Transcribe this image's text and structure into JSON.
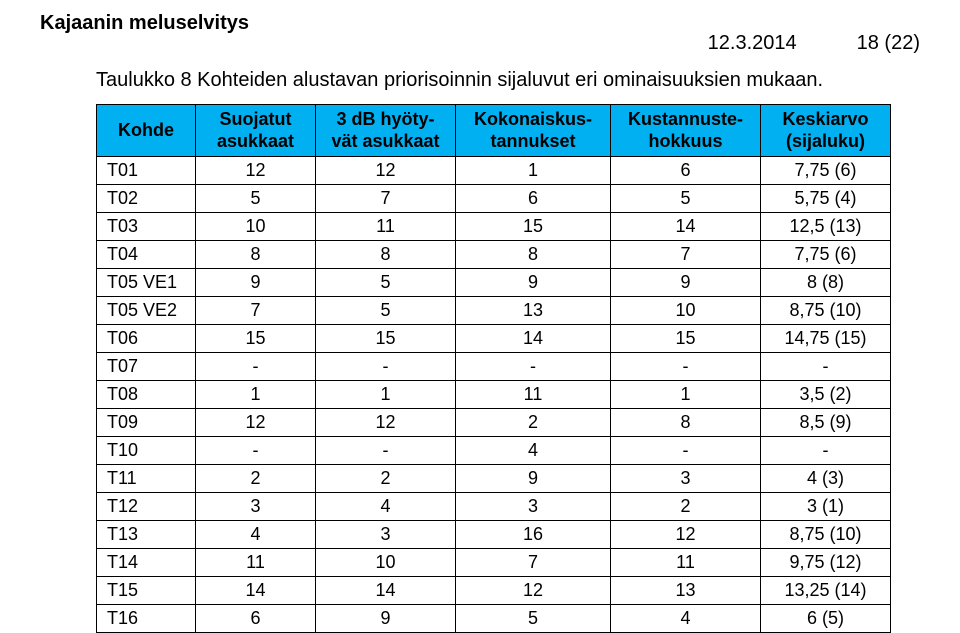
{
  "doc_title": "Kajaanin meluselvitys",
  "date": "12.3.2014",
  "page_indicator": "18 (22)",
  "caption": "Taulukko 8 Kohteiden alustavan priorisoinnin sijaluvut eri ominaisuuksien mukaan.",
  "table": {
    "header_bg": "#00b0f0",
    "border_color": "#000000",
    "columns": [
      "Kohde",
      "Suojatut asukkaat",
      "3 dB hyöty-vät asukkaat",
      "Kokonaiskus-tannukset",
      "Kustannuste-hokkuus",
      "Keskiarvo (sijaluku)"
    ],
    "header_lines": [
      [
        "Kohde"
      ],
      [
        "Suojatut",
        "asukkaat"
      ],
      [
        "3 dB hyöty-",
        "vät asukkaat"
      ],
      [
        "Kokonaiskus-",
        "tannukset"
      ],
      [
        "Kustannuste-",
        "hokkuus"
      ],
      [
        "Keskiarvo",
        "(sijaluku)"
      ]
    ],
    "rows": [
      [
        "T01",
        "12",
        "12",
        "1",
        "6",
        "7,75 (6)"
      ],
      [
        "T02",
        "5",
        "7",
        "6",
        "5",
        "5,75 (4)"
      ],
      [
        "T03",
        "10",
        "11",
        "15",
        "14",
        "12,5 (13)"
      ],
      [
        "T04",
        "8",
        "8",
        "8",
        "7",
        "7,75 (6)"
      ],
      [
        "T05 VE1",
        "9",
        "5",
        "9",
        "9",
        "8 (8)"
      ],
      [
        "T05 VE2",
        "7",
        "5",
        "13",
        "10",
        "8,75 (10)"
      ],
      [
        "T06",
        "15",
        "15",
        "14",
        "15",
        "14,75 (15)"
      ],
      [
        "T07",
        "-",
        "-",
        "-",
        "-",
        "-"
      ],
      [
        "T08",
        "1",
        "1",
        "11",
        "1",
        "3,5 (2)"
      ],
      [
        "T09",
        "12",
        "12",
        "2",
        "8",
        "8,5 (9)"
      ],
      [
        "T10",
        "-",
        "-",
        "4",
        "-",
        "-"
      ],
      [
        "T11",
        "2",
        "2",
        "9",
        "3",
        "4 (3)"
      ],
      [
        "T12",
        "3",
        "4",
        "3",
        "2",
        "3 (1)"
      ],
      [
        "T13",
        "4",
        "3",
        "16",
        "12",
        "8,75 (10)"
      ],
      [
        "T14",
        "11",
        "10",
        "7",
        "11",
        "9,75 (12)"
      ],
      [
        "T15",
        "14",
        "14",
        "12",
        "13",
        "13,25 (14)"
      ],
      [
        "T16",
        "6",
        "9",
        "5",
        "4",
        "6 (5)"
      ]
    ]
  }
}
